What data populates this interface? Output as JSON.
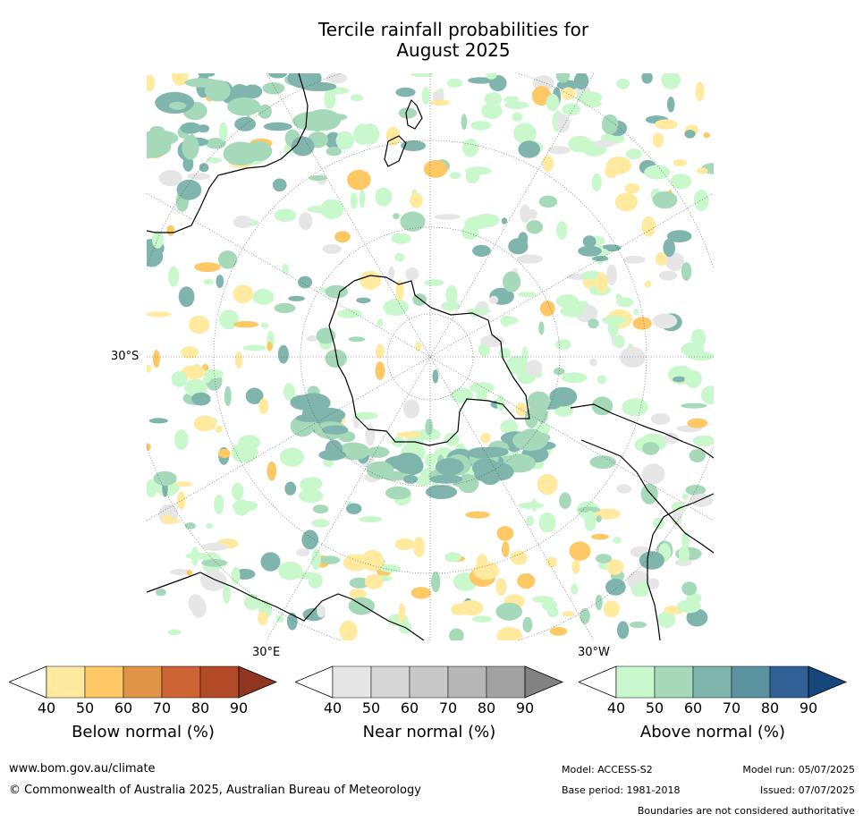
{
  "title": {
    "line1": "Tercile rainfall probabilities for",
    "line2": "August 2025"
  },
  "map": {
    "lat_label": "30°S",
    "lon_labels": {
      "east": "30°E",
      "west": "30°W"
    }
  },
  "colorbars": [
    {
      "title": "Below normal (%)",
      "ticks": [
        "40",
        "50",
        "60",
        "70",
        "80",
        "90"
      ],
      "colors": [
        "#ffffff",
        "#ffeaa0",
        "#fec865",
        "#e09447",
        "#cd6433",
        "#b24a28",
        "#8f3520"
      ]
    },
    {
      "title": "Near normal (%)",
      "ticks": [
        "40",
        "50",
        "60",
        "70",
        "80",
        "90"
      ],
      "colors": [
        "#ffffff",
        "#e6e6e6",
        "#d6d6d6",
        "#c8c8c8",
        "#b6b6b6",
        "#a2a2a2",
        "#828282"
      ]
    },
    {
      "title": "Above normal (%)",
      "ticks": [
        "40",
        "50",
        "60",
        "70",
        "80",
        "90"
      ],
      "colors": [
        "#ffffff",
        "#c8f8cc",
        "#a6d9ba",
        "#80b5ad",
        "#5b92a0",
        "#316096",
        "#16467c"
      ]
    }
  ],
  "footer": {
    "url": "www.bom.gov.au/climate",
    "copyright": "© Commonwealth of Australia 2025, Australian Bureau of Meteorology",
    "model": "Model: ACCESS-S2",
    "base_period": "Base period: 1981-2018",
    "model_run": "Model run: 05/07/2025",
    "issued": "Issued: 07/07/2025",
    "disclaimer": "Boundaries are not considered authoritative"
  }
}
